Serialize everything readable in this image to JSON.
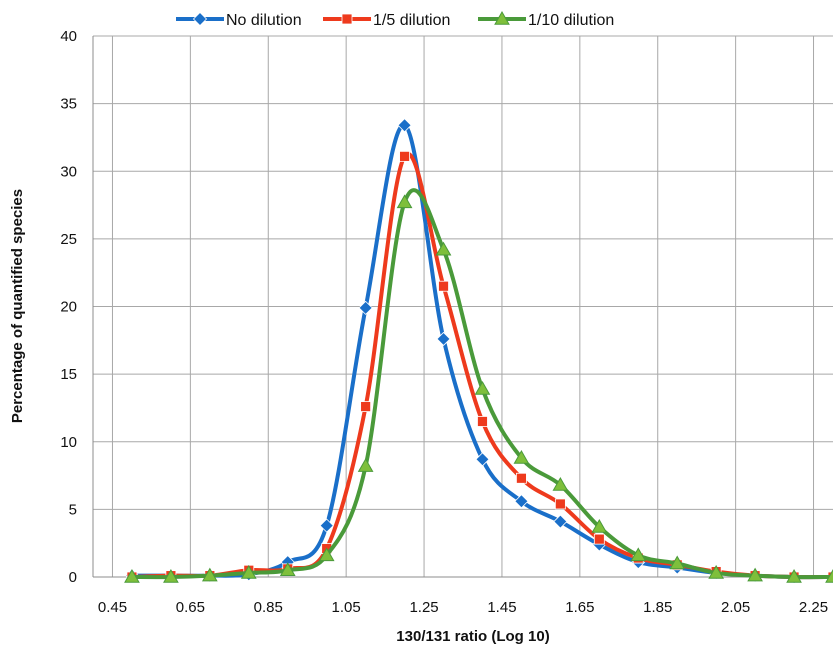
{
  "chart_data": {
    "type": "line",
    "xlabel": "130/131 ratio (Log 10)",
    "ylabel": "Percentage of quantified species",
    "xlim": [
      0.4,
      2.3
    ],
    "ylim": [
      0,
      40
    ],
    "x_ticks": [
      "0.45",
      "0.65",
      "0.85",
      "1.05",
      "1.25",
      "1.45",
      "1.65",
      "1.85",
      "2.05",
      "2.25"
    ],
    "y_ticks": [
      "0",
      "5",
      "10",
      "15",
      "20",
      "25",
      "30",
      "35",
      "40"
    ],
    "grid": true,
    "legend_position": "top",
    "series": [
      {
        "name": "No dilution",
        "color": "#1a6fc9",
        "marker": "diamond",
        "x": [
          0.5,
          0.6,
          0.7,
          0.8,
          0.9,
          1.0,
          1.1,
          1.2,
          1.3,
          1.4,
          1.5,
          1.6,
          1.7,
          1.8,
          1.9,
          2.0,
          2.1,
          2.2,
          2.3
        ],
        "y": [
          0.1,
          0.1,
          0.1,
          0.2,
          1.1,
          3.8,
          19.9,
          33.4,
          17.6,
          8.7,
          5.6,
          4.1,
          2.4,
          1.1,
          0.7,
          0.3,
          0.1,
          0.0,
          0.0
        ]
      },
      {
        "name": "1/5 dilution",
        "color": "#ee3a1d",
        "marker": "square",
        "x": [
          0.5,
          0.6,
          0.7,
          0.8,
          0.9,
          1.0,
          1.1,
          1.2,
          1.3,
          1.4,
          1.5,
          1.6,
          1.7,
          1.8,
          1.9,
          2.0,
          2.1,
          2.2,
          2.3
        ],
        "y": [
          0.0,
          0.1,
          0.1,
          0.5,
          0.6,
          2.1,
          12.6,
          31.1,
          21.5,
          11.5,
          7.3,
          5.4,
          2.8,
          1.4,
          0.9,
          0.4,
          0.1,
          0.0,
          0.0
        ]
      },
      {
        "name": "1/10 dilution",
        "color": "#4a9a3a",
        "marker": "triangle",
        "x": [
          0.5,
          0.6,
          0.7,
          0.8,
          0.9,
          1.0,
          1.1,
          1.2,
          1.3,
          1.4,
          1.5,
          1.6,
          1.7,
          1.8,
          1.9,
          2.0,
          2.1,
          2.2,
          2.3
        ],
        "y": [
          0.0,
          0.0,
          0.1,
          0.3,
          0.5,
          1.6,
          8.2,
          27.7,
          24.2,
          13.9,
          8.8,
          6.8,
          3.7,
          1.6,
          1.0,
          0.3,
          0.1,
          0.0,
          0.0
        ]
      }
    ]
  }
}
